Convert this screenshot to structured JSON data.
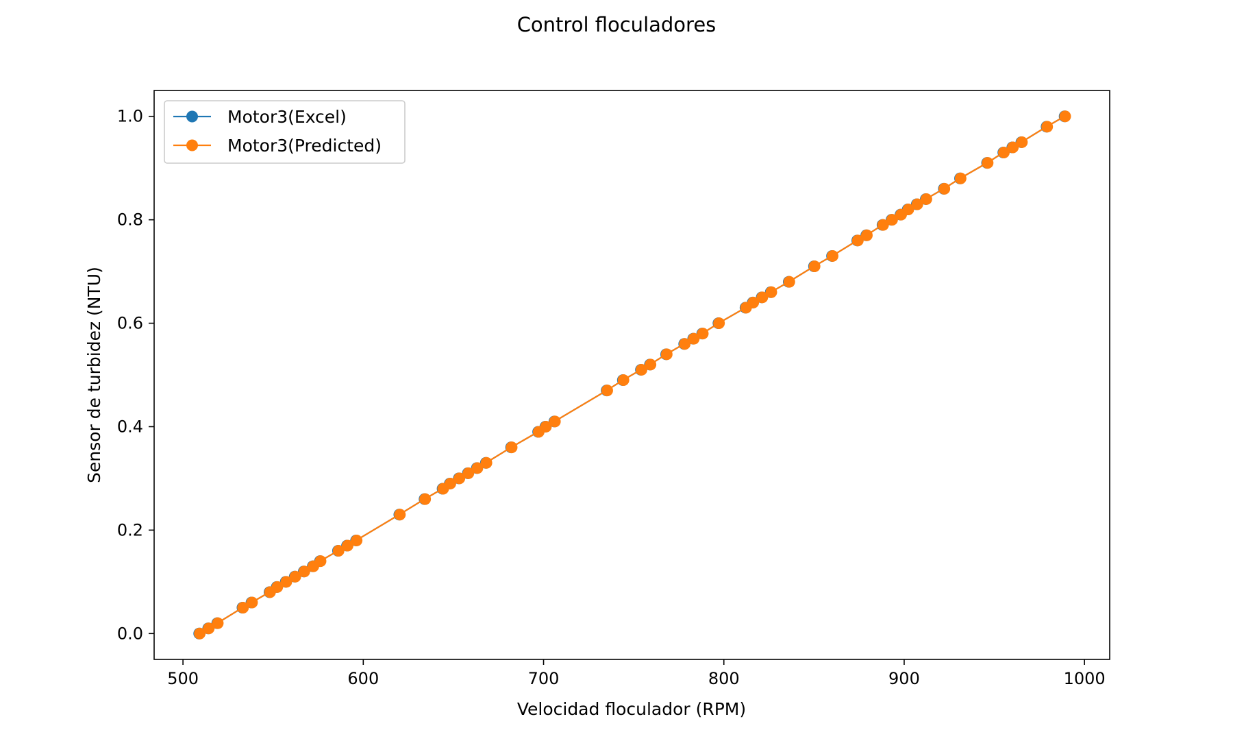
{
  "chart_data": {
    "type": "line",
    "title": "Control floculadores",
    "xlabel": "Velocidad floculador (RPM)",
    "ylabel": "Sensor de turbidez (NTU)",
    "xlim": [
      484,
      1014
    ],
    "ylim": [
      -0.05,
      1.05
    ],
    "x_ticks": [
      500,
      600,
      700,
      800,
      900,
      1000
    ],
    "y_ticks": [
      0.0,
      0.2,
      0.4,
      0.6,
      0.8,
      1.0
    ],
    "x_tick_labels": [
      "500",
      "600",
      "700",
      "800",
      "900",
      "1000"
    ],
    "y_tick_labels": [
      "0.0",
      "0.2",
      "0.4",
      "0.6",
      "0.8",
      "1.0"
    ],
    "grid": false,
    "legend_position": "top-left",
    "x": [
      509,
      514,
      519,
      533,
      538,
      548,
      552,
      557,
      562,
      567,
      572,
      576,
      586,
      591,
      596,
      620,
      634,
      644,
      648,
      653,
      658,
      663,
      668,
      682,
      697,
      701,
      706,
      735,
      744,
      754,
      759,
      768,
      778,
      783,
      788,
      797,
      812,
      816,
      821,
      826,
      836,
      850,
      860,
      874,
      879,
      888,
      893,
      898,
      902,
      907,
      912,
      922,
      931,
      946,
      955,
      960,
      965,
      979,
      989
    ],
    "series": [
      {
        "name": "Motor3(Excel)",
        "color": "#1f77b4",
        "values": [
          0.0,
          0.01,
          0.02,
          0.05,
          0.06,
          0.08,
          0.09,
          0.1,
          0.11,
          0.12,
          0.13,
          0.14,
          0.16,
          0.17,
          0.18,
          0.23,
          0.26,
          0.28,
          0.29,
          0.3,
          0.31,
          0.32,
          0.33,
          0.36,
          0.39,
          0.4,
          0.41,
          0.47,
          0.49,
          0.51,
          0.52,
          0.54,
          0.56,
          0.57,
          0.58,
          0.6,
          0.63,
          0.64,
          0.65,
          0.66,
          0.68,
          0.71,
          0.73,
          0.76,
          0.77,
          0.79,
          0.8,
          0.81,
          0.82,
          0.83,
          0.84,
          0.86,
          0.88,
          0.91,
          0.93,
          0.94,
          0.95,
          0.98,
          1.0
        ]
      },
      {
        "name": "Motor3(Predicted)",
        "color": "#ff7f0e",
        "values": [
          0.0,
          0.01,
          0.02,
          0.05,
          0.06,
          0.08,
          0.09,
          0.1,
          0.11,
          0.12,
          0.13,
          0.14,
          0.16,
          0.17,
          0.18,
          0.23,
          0.26,
          0.28,
          0.29,
          0.3,
          0.31,
          0.32,
          0.33,
          0.36,
          0.39,
          0.4,
          0.41,
          0.47,
          0.49,
          0.51,
          0.52,
          0.54,
          0.56,
          0.57,
          0.58,
          0.6,
          0.63,
          0.64,
          0.65,
          0.66,
          0.68,
          0.71,
          0.73,
          0.76,
          0.77,
          0.79,
          0.8,
          0.81,
          0.82,
          0.83,
          0.84,
          0.86,
          0.88,
          0.91,
          0.93,
          0.94,
          0.95,
          0.98,
          1.0
        ]
      }
    ]
  }
}
